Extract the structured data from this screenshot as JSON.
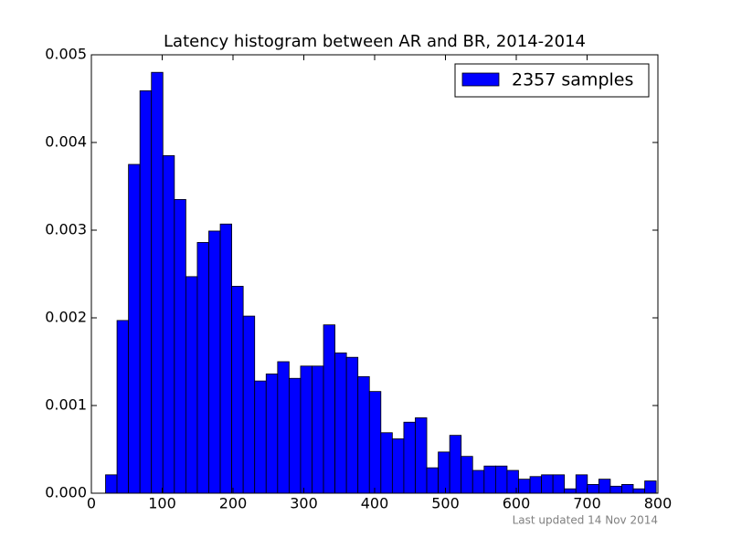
{
  "chart_data": {
    "type": "histogram",
    "title": "Latency histogram between AR and BR, 2014-2014",
    "annotation": "Last updated 14 Nov 2014",
    "series": [
      {
        "name": "2357 samples",
        "color": "#0000ff",
        "bins": [
          20,
          36.2,
          52.4,
          68.6,
          84.8,
          101,
          117.2,
          133.4,
          149.6,
          165.8,
          182,
          198.2,
          214.4,
          230.6,
          246.8,
          263,
          279.2,
          295.4,
          311.6,
          327.8,
          344,
          360.2,
          376.4,
          392.6,
          408.8,
          425,
          441.2,
          457.4,
          473.6,
          489.8,
          506,
          522.2,
          538.4,
          554.6,
          570.8,
          587,
          603.2,
          619.4,
          635.6,
          651.8,
          668,
          684.2,
          700.4,
          716.6,
          732.8,
          749,
          765.2,
          781.4,
          797.6
        ],
        "values": [
          0.00021,
          0.00197,
          0.00375,
          0.00459,
          0.0048,
          0.00385,
          0.00335,
          0.00247,
          0.00286,
          0.00299,
          0.00307,
          0.00236,
          0.00202,
          0.00128,
          0.00136,
          0.0015,
          0.00131,
          0.00145,
          0.00145,
          0.00192,
          0.0016,
          0.00155,
          0.00133,
          0.00116,
          0.00069,
          0.00062,
          0.00081,
          0.00086,
          0.00029,
          0.00047,
          0.00066,
          0.00042,
          0.00026,
          0.00031,
          0.00031,
          0.00026,
          0.00016,
          0.00019,
          0.00021,
          0.00021,
          5e-05,
          0.00021,
          0.0001,
          0.00016,
          8e-05,
          0.0001,
          5e-05,
          0.00014
        ]
      }
    ],
    "xlim": [
      0,
      800
    ],
    "xticks": [
      0,
      100,
      200,
      300,
      400,
      500,
      600,
      700,
      800
    ],
    "ylim": [
      0,
      0.005
    ],
    "yticks": [
      {
        "value": 0,
        "label": "0.000"
      },
      0.001,
      0.002,
      0.003,
      0.004,
      0.005
    ],
    "legend": "upper right",
    "grid": false
  }
}
